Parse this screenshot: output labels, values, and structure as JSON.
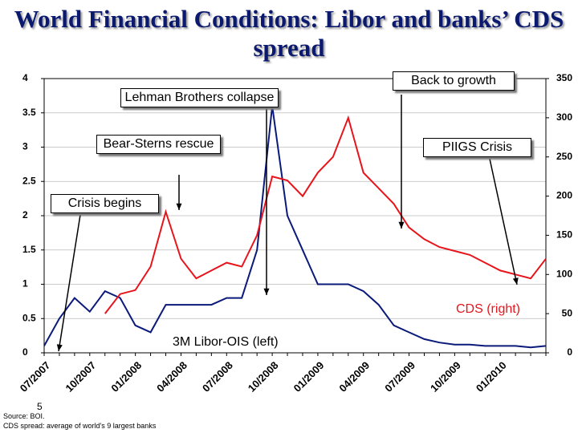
{
  "chart_data": {
    "type": "line",
    "title": "World Financial Conditions: Libor and banks’ CDS spread",
    "categories": [
      "07/2007",
      null,
      null,
      "10/2007",
      null,
      null,
      "01/2008",
      null,
      null,
      "04/2008",
      null,
      null,
      "07/2008",
      null,
      null,
      "10/2008",
      null,
      null,
      "01/2009",
      null,
      null,
      "04/2009",
      null,
      null,
      "07/2009",
      null,
      null,
      "10/2009",
      null,
      null,
      "01/2010",
      null,
      null,
      null
    ],
    "series": [
      {
        "name": "3M Libor-OIS (left)",
        "color": "#0a1a7a",
        "axis": "y",
        "values": [
          0.1,
          0.5,
          0.8,
          0.6,
          0.9,
          0.8,
          0.4,
          0.3,
          0.7,
          0.7,
          0.7,
          0.7,
          0.8,
          0.8,
          1.5,
          3.6,
          2.0,
          1.5,
          1.0,
          1.0,
          1.0,
          0.9,
          0.7,
          0.4,
          0.3,
          0.2,
          0.15,
          0.12,
          0.12,
          0.1,
          0.1,
          0.1,
          0.08,
          0.1
        ]
      },
      {
        "name": "CDS (right)",
        "color": "#e8141c",
        "axis": "y2",
        "values": [
          null,
          null,
          null,
          null,
          50,
          75,
          80,
          110,
          180,
          120,
          95,
          105,
          115,
          110,
          150,
          225,
          220,
          200,
          230,
          250,
          300,
          230,
          210,
          190,
          160,
          145,
          135,
          130,
          125,
          115,
          105,
          100,
          95,
          120
        ]
      }
    ],
    "ylim": [
      0,
      4
    ],
    "yticks": [
      0,
      0.5,
      1,
      1.5,
      2,
      2.5,
      3,
      3.5,
      4
    ],
    "y2lim": [
      0,
      350
    ],
    "y2ticks": [
      0,
      50,
      100,
      150,
      200,
      250,
      300,
      350
    ],
    "grid": true,
    "annotations": [
      "Back to growth",
      "Lehman Brothers collapse",
      "Bear-Sterns rescue",
      "PIIGS Crisis",
      "Crisis begins"
    ],
    "page_number": "5",
    "source": "Source: BOI.",
    "note": "CDS spread: average of world's 9 largest banks"
  }
}
